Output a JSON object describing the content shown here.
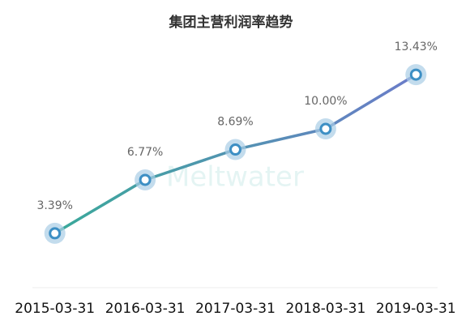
{
  "chart_data": {
    "type": "line",
    "title": "集团主营利润率趋势",
    "watermark": "Meltwater",
    "categories": [
      "2015-03-31",
      "2016-03-31",
      "2017-03-31",
      "2018-03-31",
      "2019-03-31"
    ],
    "values": [
      3.39,
      6.77,
      8.69,
      10.0,
      13.43
    ],
    "value_labels": [
      "3.39%",
      "6.77%",
      "8.69%",
      "10.00%",
      "13.43%"
    ],
    "gradient": [
      "#3aa99a",
      "#6b7cc9"
    ],
    "marker_color": "#3d8fc4",
    "ylim": [
      0,
      16
    ]
  }
}
